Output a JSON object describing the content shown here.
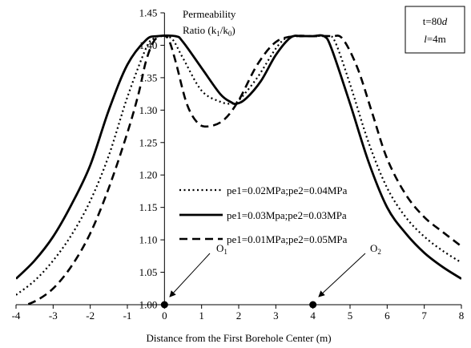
{
  "chart_data": {
    "type": "line",
    "xlabel": "Distance from the First Borehole Center (m)",
    "ylabel_line1": "Permeability",
    "ylabel_line2": "Ratio (k",
    "ylabel_sub1": "1",
    "ylabel_mid": "/k",
    "ylabel_sub2": "0",
    "ylabel_end": ")",
    "xlim": [
      -4,
      8
    ],
    "ylim": [
      1.0,
      1.45
    ],
    "xticks": [
      -4,
      -3,
      -2,
      -1,
      0,
      1,
      2,
      3,
      4,
      5,
      6,
      7,
      8
    ],
    "yticks": [
      1.0,
      1.05,
      1.1,
      1.15,
      1.2,
      1.25,
      1.3,
      1.35,
      1.4,
      1.45
    ],
    "info_box": {
      "line1_prefix": "t=80",
      "line1_italic": "d",
      "line2_italic": "l",
      "line2_suffix": "=4m"
    },
    "points": [
      {
        "name": "O",
        "sub": "1",
        "x": 0,
        "y": 1.0
      },
      {
        "name": "O",
        "sub": "2",
        "x": 4,
        "y": 1.0
      }
    ],
    "series": [
      {
        "name": "pe1=0.02MPa;pe2=0.04MPa",
        "style": "dotted",
        "x": [
          -4.0,
          -3.5,
          -3.0,
          -2.5,
          -2.0,
          -1.5,
          -1.0,
          -0.5,
          -0.3,
          -0.1,
          0.2,
          0.5,
          1.0,
          1.5,
          1.8,
          2.0,
          2.5,
          3.0,
          3.3,
          3.6,
          4.0,
          4.4,
          4.6,
          5.0,
          5.5,
          6.0,
          6.5,
          7.0,
          7.5,
          8.0
        ],
        "y": [
          1.015,
          1.037,
          1.068,
          1.108,
          1.16,
          1.23,
          1.32,
          1.395,
          1.41,
          1.414,
          1.41,
          1.38,
          1.33,
          1.313,
          1.31,
          1.315,
          1.35,
          1.395,
          1.412,
          1.414,
          1.414,
          1.414,
          1.405,
          1.34,
          1.25,
          1.18,
          1.135,
          1.105,
          1.083,
          1.065
        ]
      },
      {
        "name": "pe1=0.03Mpa;pe2=0.03MPa",
        "style": "solid",
        "x": [
          -4.0,
          -3.5,
          -3.0,
          -2.5,
          -2.0,
          -1.5,
          -1.0,
          -0.5,
          -0.2,
          0.3,
          0.5,
          1.0,
          1.5,
          1.8,
          1.95,
          2.2,
          2.6,
          3.0,
          3.4,
          3.7,
          4.0,
          4.3,
          4.5,
          5.0,
          5.5,
          6.0,
          6.5,
          7.0,
          7.5,
          8.0
        ],
        "y": [
          1.04,
          1.068,
          1.105,
          1.155,
          1.215,
          1.3,
          1.37,
          1.408,
          1.414,
          1.414,
          1.405,
          1.365,
          1.325,
          1.312,
          1.31,
          1.318,
          1.345,
          1.385,
          1.412,
          1.414,
          1.414,
          1.414,
          1.395,
          1.31,
          1.22,
          1.15,
          1.11,
          1.08,
          1.058,
          1.04
        ]
      },
      {
        "name": "pe1=0.01MPa;pe2=0.05MPa",
        "style": "dashed",
        "x": [
          -4.0,
          -3.5,
          -3.0,
          -2.5,
          -2.0,
          -1.5,
          -1.0,
          -0.7,
          -0.5,
          -0.3,
          -0.1,
          0.1,
          0.3,
          0.6,
          0.9,
          1.2,
          1.6,
          2.0,
          2.5,
          3.0,
          3.5,
          4.0,
          4.5,
          4.8,
          5.2,
          5.6,
          6.0,
          6.5,
          7.0,
          7.5,
          8.0
        ],
        "y": [
          0.995,
          1.005,
          1.025,
          1.06,
          1.11,
          1.18,
          1.265,
          1.325,
          1.375,
          1.405,
          1.414,
          1.41,
          1.375,
          1.31,
          1.28,
          1.275,
          1.285,
          1.315,
          1.37,
          1.405,
          1.414,
          1.414,
          1.414,
          1.41,
          1.365,
          1.295,
          1.225,
          1.17,
          1.135,
          1.112,
          1.09
        ]
      }
    ]
  }
}
